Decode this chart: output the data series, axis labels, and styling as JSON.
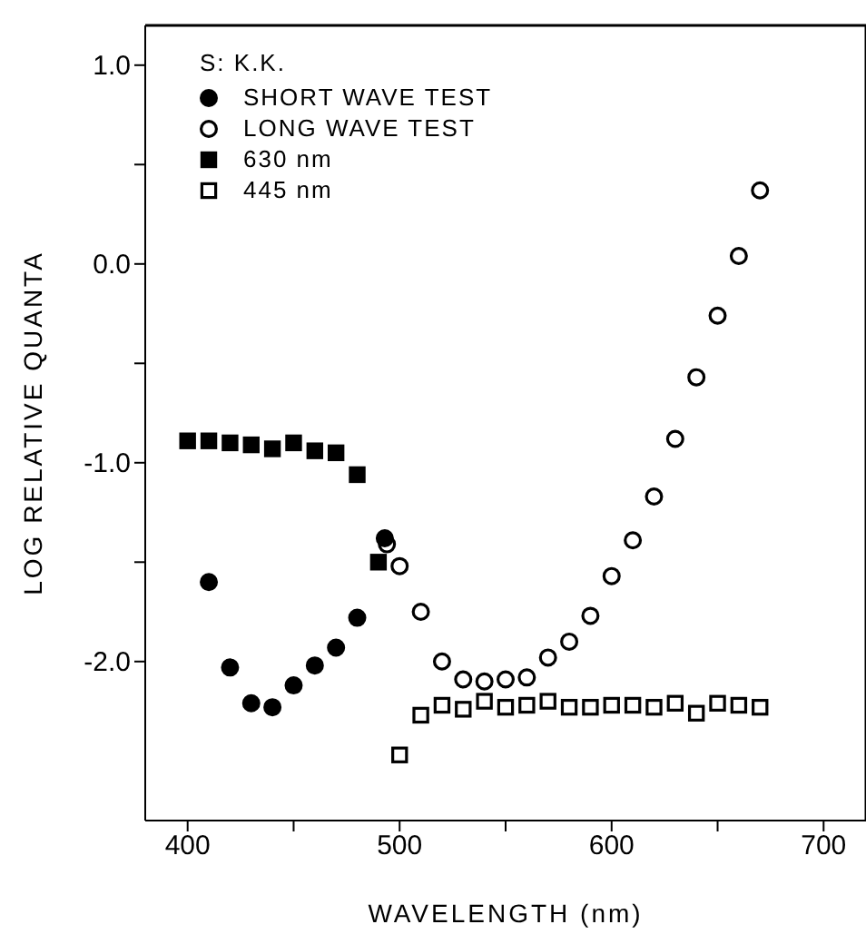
{
  "chart_data": {
    "type": "scatter",
    "xlabel": "WAVELENGTH (nm)",
    "ylabel": "LOG RELATIVE QUANTA",
    "legend_title": "S: K.K.",
    "legend": "top left",
    "grid": false,
    "xlim": [
      380,
      720
    ],
    "ylim": [
      -2.8,
      1.2
    ],
    "xticks": [
      400,
      {
        "value": 450,
        "label": null
      },
      500,
      {
        "value": 550,
        "label": null
      },
      600,
      {
        "value": 650,
        "label": null
      },
      700
    ],
    "yticks": [
      {
        "value": 1,
        "label": "1.0"
      },
      {
        "value": 0.5,
        "label": null
      },
      {
        "value": 0,
        "label": "0.0"
      },
      {
        "value": -0.5,
        "label": null
      },
      {
        "value": -1,
        "label": "-1.0"
      },
      {
        "value": -1.5,
        "label": null
      },
      {
        "value": -2,
        "label": "-2.0"
      }
    ],
    "series": [
      {
        "name": "SHORT WAVE TEST",
        "color": "#000000",
        "marker": "circle",
        "x": [
          410,
          420,
          430,
          440,
          450,
          460,
          470,
          480,
          493
        ],
        "values": [
          -1.6,
          -2.03,
          -2.21,
          -2.23,
          -2.12,
          -2.02,
          -1.93,
          -1.78,
          -1.38
        ]
      },
      {
        "name": "LONG WAVE TEST",
        "color": "#ffffff",
        "marker": "circle",
        "x": [
          494,
          500,
          510,
          520,
          530,
          540,
          550,
          560,
          570,
          580,
          590,
          600,
          610,
          620,
          630,
          640,
          650,
          660,
          670
        ],
        "values": [
          -1.41,
          -1.52,
          -1.75,
          -2.0,
          -2.09,
          -2.1,
          -2.09,
          -2.08,
          -1.98,
          -1.9,
          -1.77,
          -1.57,
          -1.39,
          -1.17,
          -0.88,
          -0.57,
          -0.26,
          0.04,
          0.37
        ]
      },
      {
        "name": "630 nm",
        "color": "#000000",
        "marker": "square",
        "x": [
          400,
          410,
          420,
          430,
          440,
          450,
          460,
          470,
          480,
          490
        ],
        "values": [
          -0.89,
          -0.89,
          -0.9,
          -0.91,
          -0.93,
          -0.9,
          -0.94,
          -0.95,
          -1.06,
          -1.5
        ]
      },
      {
        "name": "445 nm",
        "color": "#ffffff",
        "marker": "square",
        "x": [
          500,
          510,
          520,
          530,
          540,
          550,
          560,
          570,
          580,
          590,
          600,
          610,
          620,
          630,
          640,
          650,
          660,
          670
        ],
        "values": [
          -2.47,
          -2.27,
          -2.22,
          -2.24,
          -2.2,
          -2.23,
          -2.22,
          -2.2,
          -2.23,
          -2.23,
          -2.22,
          -2.22,
          -2.23,
          -2.21,
          -2.26,
          -2.21,
          -2.22,
          -2.23
        ]
      }
    ]
  }
}
